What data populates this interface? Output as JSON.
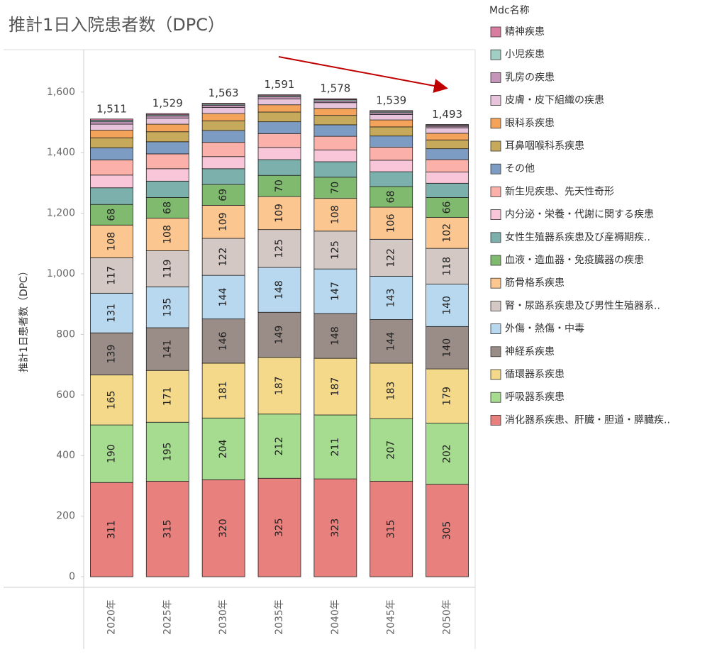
{
  "chart_data": {
    "type": "stacked_bar",
    "title": "推計1日入院患者数（DPC）",
    "ylabel": "推計1日患者数（DPC）",
    "legend_title": "Mdc名称",
    "categories": [
      "2020年",
      "2025年",
      "2030年",
      "2035年",
      "2040年",
      "2045年",
      "2050年"
    ],
    "totals": [
      1511,
      1529,
      1563,
      1591,
      1578,
      1539,
      1493
    ],
    "total_labels": [
      "1,511",
      "1,529",
      "1,563",
      "1,591",
      "1,578",
      "1,539",
      "1,493"
    ],
    "ylim": [
      -35,
      1740
    ],
    "yticks": [
      0,
      200,
      400,
      600,
      800,
      {
        "value": 1000,
        "label": "1,000"
      },
      {
        "value": 1200,
        "label": "1,200"
      },
      {
        "value": 1400,
        "label": "1,400"
      },
      {
        "value": 1600,
        "label": "1,600"
      }
    ],
    "series": [
      {
        "name": "消化器系疾患、肝臓・胆道・膵臓疾..",
        "color": "#e8807d",
        "show_labels": true,
        "values": [
          311,
          315,
          320,
          325,
          323,
          315,
          305
        ]
      },
      {
        "name": "呼吸器系疾患",
        "color": "#a6dc8f",
        "show_labels": true,
        "values": [
          190,
          195,
          204,
          212,
          211,
          207,
          202
        ]
      },
      {
        "name": "循環器系疾患",
        "color": "#f5d98a",
        "show_labels": true,
        "values": [
          165,
          171,
          181,
          187,
          187,
          183,
          179
        ]
      },
      {
        "name": "神経系疾患",
        "color": "#9a8c86",
        "show_labels": true,
        "values": [
          139,
          141,
          146,
          149,
          148,
          144,
          140
        ]
      },
      {
        "name": "外傷・熱傷・中毒",
        "color": "#b8d8f0",
        "show_labels": true,
        "values": [
          131,
          135,
          144,
          148,
          147,
          143,
          140
        ]
      },
      {
        "name": "腎・尿路系疾患及び男性生殖器系..",
        "color": "#d4c8c4",
        "show_labels": true,
        "values": [
          117,
          119,
          122,
          125,
          125,
          122,
          118
        ]
      },
      {
        "name": "筋骨格系疾患",
        "color": "#fcc690",
        "show_labels": true,
        "values": [
          108,
          108,
          109,
          109,
          108,
          106,
          102
        ]
      },
      {
        "name": "血液・造血器・免疫臓器の疾患",
        "color": "#7fba6e",
        "show_labels": true,
        "values": [
          68,
          68,
          69,
          70,
          70,
          68,
          66
        ]
      },
      {
        "name": "女性生殖器系疾患及び産褥期疾..",
        "color": "#7bb0ac",
        "show_labels": false,
        "values": [
          55,
          54,
          52,
          52,
          51,
          49,
          47
        ]
      },
      {
        "name": "内分泌・栄養・代謝に関する疾患",
        "color": "#f9c5d8",
        "show_labels": false,
        "values": [
          42,
          41,
          40,
          40,
          39,
          38,
          37
        ]
      },
      {
        "name": "新生児疾患、先天性奇形",
        "color": "#fbb0aa",
        "show_labels": false,
        "values": [
          50,
          49,
          47,
          46,
          45,
          43,
          41
        ]
      },
      {
        "name": "その他",
        "color": "#7d9cc4",
        "show_labels": false,
        "values": [
          40,
          40,
          39,
          39,
          38,
          37,
          36
        ]
      },
      {
        "name": "耳鼻咽喉科系疾患",
        "color": "#c6a95a",
        "show_labels": false,
        "values": [
          33,
          33,
          32,
          32,
          31,
          30,
          29
        ]
      },
      {
        "name": "眼科系疾患",
        "color": "#f4a45a",
        "show_labels": false,
        "values": [
          25,
          25,
          24,
          24,
          23,
          23,
          22
        ]
      },
      {
        "name": "皮膚・皮下組織の疾患",
        "color": "#e8c4dc",
        "show_labels": false,
        "values": [
          20,
          20,
          20,
          19,
          19,
          18,
          18
        ]
      },
      {
        "name": "乳房の疾患",
        "color": "#c495b8",
        "show_labels": false,
        "values": [
          8,
          7,
          7,
          7,
          6,
          6,
          5
        ]
      },
      {
        "name": "小児疾患",
        "color": "#a2cfc4",
        "show_labels": false,
        "values": [
          5,
          4,
          4,
          4,
          4,
          4,
          3
        ]
      },
      {
        "name": "精神疾患",
        "color": "#d87ca0",
        "show_labels": false,
        "values": [
          4,
          4,
          3,
          3,
          3,
          3,
          3
        ]
      }
    ]
  }
}
